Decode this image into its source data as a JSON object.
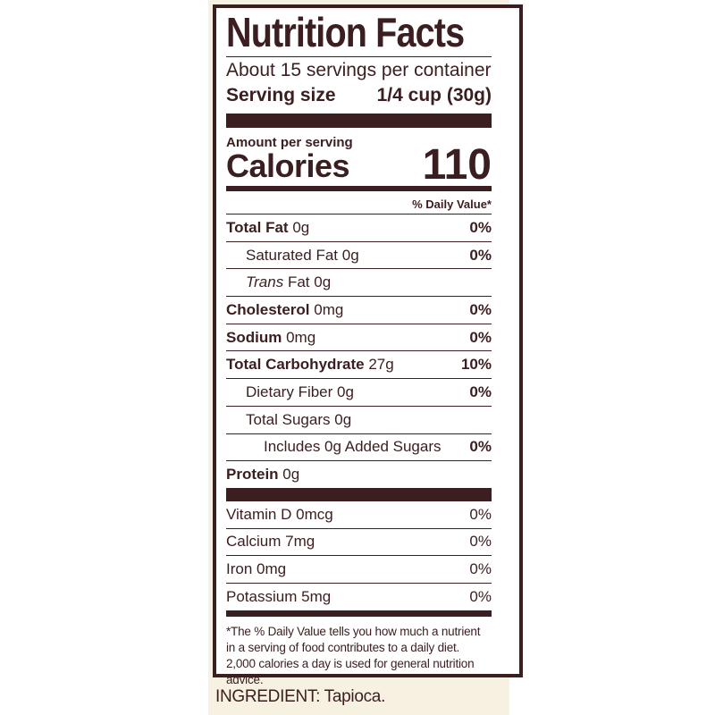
{
  "label": {
    "title": "Nutrition Facts",
    "servings_per_container": "About 15 servings per container",
    "serving_size_label": "Serving size",
    "serving_size_value": "1/4 cup (30g)",
    "amount_per_serving": "Amount per serving",
    "calories_label": "Calories",
    "calories_value": "110",
    "daily_value_header": "% Daily Value*",
    "nutrients": [
      {
        "name": "Total Fat",
        "amount": "0g",
        "dv": "0%"
      },
      {
        "name": "Saturated Fat",
        "amount": "0g",
        "dv": "0%"
      },
      {
        "name": "Trans",
        "name_suffix": "Fat",
        "amount": "0g",
        "dv": ""
      },
      {
        "name": "Cholesterol",
        "amount": "0mg",
        "dv": "0%"
      },
      {
        "name": "Sodium",
        "amount": "0mg",
        "dv": "0%"
      },
      {
        "name": "Total Carbohydrate",
        "amount": "27g",
        "dv": "10%"
      },
      {
        "name": "Dietary Fiber",
        "amount": "0g",
        "dv": "0%"
      },
      {
        "name": "Total Sugars",
        "amount": "0g",
        "dv": ""
      },
      {
        "name": "Includes 0g Added Sugars",
        "amount": "",
        "dv": "0%"
      },
      {
        "name": "Protein",
        "amount": "0g",
        "dv": ""
      }
    ],
    "vitamins": [
      {
        "name": "Vitamin D",
        "amount": "0mcg",
        "dv": "0%"
      },
      {
        "name": "Calcium",
        "amount": "7mg",
        "dv": "0%"
      },
      {
        "name": "Iron",
        "amount": "0mg",
        "dv": "0%"
      },
      {
        "name": "Potassium",
        "amount": "5mg",
        "dv": "0%"
      }
    ],
    "footnote": "*The % Daily Value tells you how much a nutrient in a serving of food contributes to a daily diet. 2,000 calories a day is used for general nutrition advice."
  },
  "ingredients": "INGREDIENT: Tapioca.",
  "colors": {
    "ink": "#3a1e20",
    "panel": "#f7f1e1",
    "background": "#ffffff"
  }
}
